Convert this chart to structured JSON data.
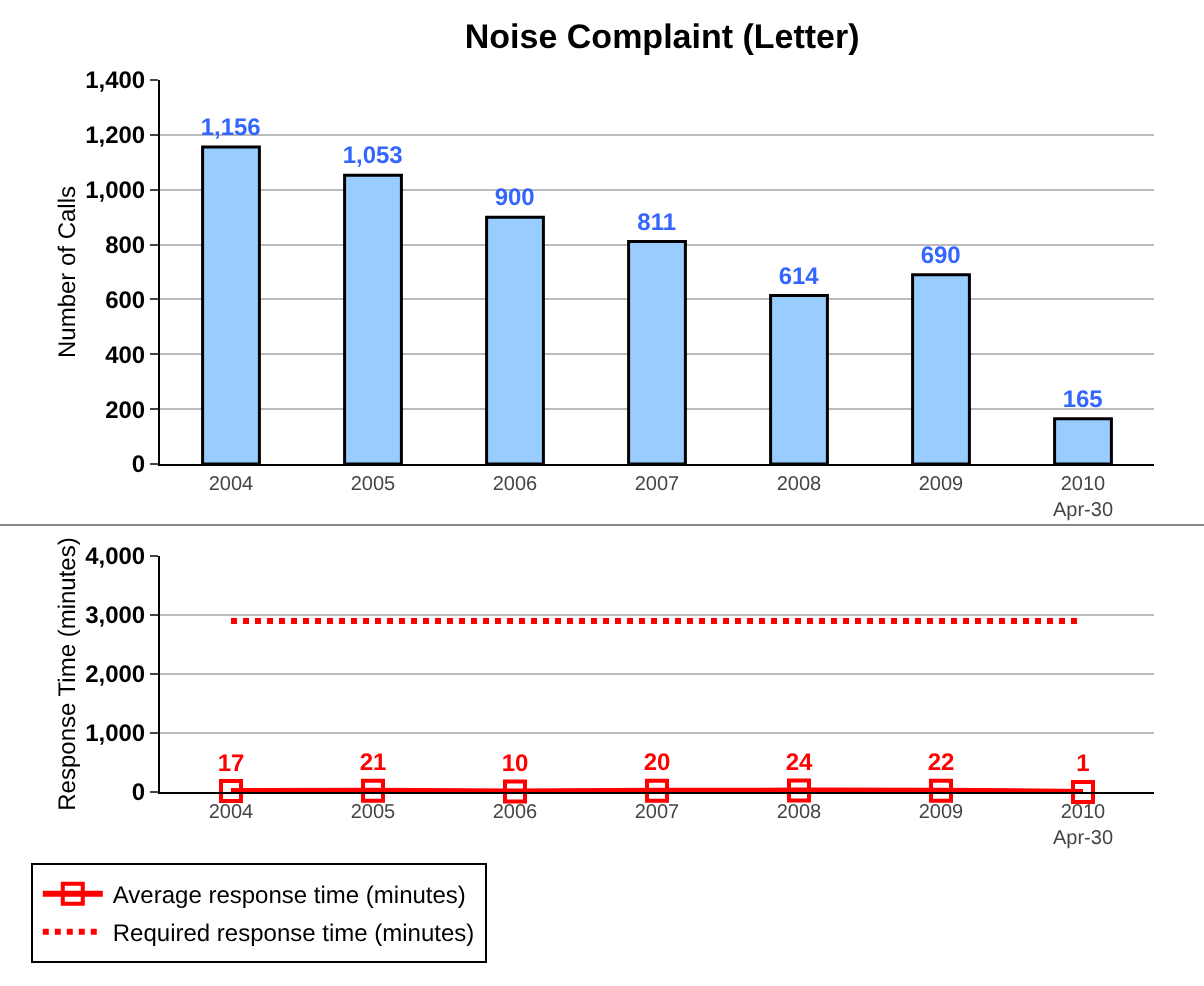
{
  "chart_data": [
    {
      "type": "bar",
      "title": "Noise Complaint (Letter)",
      "ylabel": "Number of Calls",
      "categories": [
        "2004",
        "2005",
        "2006",
        "2007",
        "2008",
        "2009",
        "2010 Apr-30"
      ],
      "values": [
        1156,
        1053,
        900,
        811,
        614,
        690,
        165
      ],
      "value_labels": [
        "1,156",
        "1,053",
        "900",
        "811",
        "614",
        "690",
        "165"
      ],
      "color": "#99ccff",
      "ylim": [
        0,
        1400
      ],
      "yticks": [
        0,
        200,
        400,
        600,
        800,
        {
          "value": 1000,
          "label": "1,000"
        },
        {
          "value": 1200,
          "label": "1,200"
        },
        {
          "value": 1400,
          "label": "1,400"
        }
      ],
      "grid": "y"
    },
    {
      "type": "line",
      "ylabel": "Response Time (minutes)",
      "categories": [
        "2004",
        "2005",
        "2006",
        "2007",
        "2008",
        "2009",
        "2010 Apr-30"
      ],
      "series": [
        {
          "name": "Average response time (minutes)",
          "color": "#ff0000",
          "values": [
            17,
            21,
            10,
            20,
            24,
            22,
            1
          ],
          "value_labels": [
            "17",
            "21",
            "10",
            "20",
            "24",
            "22",
            "1"
          ],
          "marker": "square",
          "line_style": "solid"
        },
        {
          "name": "Required response time (minutes)",
          "color": "#ff0000",
          "values": [
            2900,
            2900,
            2900,
            2900,
            2900,
            2900,
            2900
          ],
          "marker": "none",
          "line_style": "dotted"
        }
      ],
      "ylim": [
        0,
        4000
      ],
      "yticks": [
        0,
        {
          "value": 1000,
          "label": "1,000"
        },
        {
          "value": 2000,
          "label": "2,000"
        },
        {
          "value": 3000,
          "label": "3,000"
        },
        {
          "value": 4000,
          "label": "4,000"
        }
      ],
      "grid": "y",
      "legend": "bottom left"
    }
  ]
}
